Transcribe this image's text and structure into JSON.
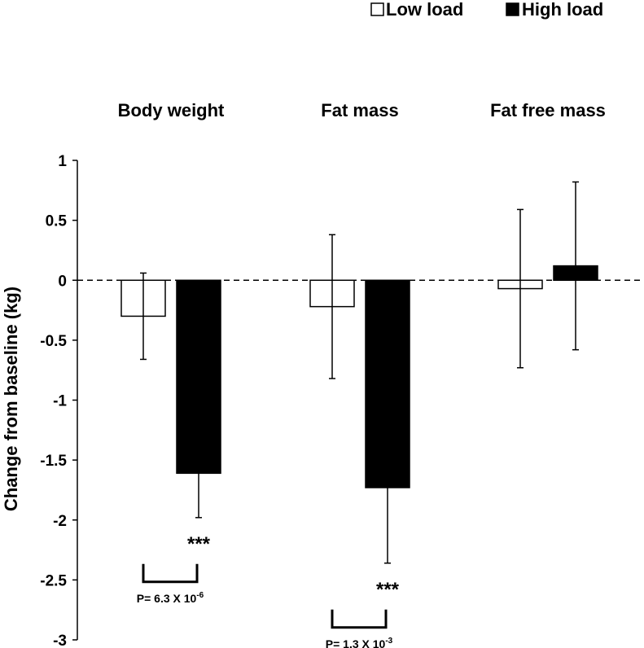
{
  "chart_data": {
    "type": "bar",
    "categories": [
      "Body weight",
      "Fat mass",
      "Fat free mass"
    ],
    "series": [
      {
        "name": "Low load",
        "fill": "#ffffff",
        "values": [
          -0.3,
          -0.22,
          -0.07
        ],
        "error": [
          0.36,
          0.6,
          0.66
        ]
      },
      {
        "name": "High load",
        "fill": "#000000",
        "values": [
          -1.61,
          -1.73,
          0.12
        ],
        "error": [
          0.37,
          0.63,
          0.7
        ]
      }
    ],
    "ylabel": "Change from baseline (kg)",
    "ylim": [
      -3,
      1
    ],
    "yticks": [
      1,
      0.5,
      0,
      -0.5,
      -1,
      -1.5,
      -2,
      -2.5,
      -3
    ],
    "ytick_labels": [
      "1",
      "0.5",
      "0",
      "-0.5",
      "-1",
      "-1.5",
      "-2",
      "-2.5",
      "-3"
    ],
    "zero_line": "dashed",
    "legend_position": "top-right",
    "annotations": [
      {
        "category": "Body weight",
        "stars": "***",
        "p_prefix": "P= 6.3 X 10",
        "p_exponent": "-6"
      },
      {
        "category": "Fat mass",
        "stars": "***",
        "p_prefix": "P= 1.3 X 10",
        "p_exponent": "-3"
      }
    ]
  }
}
